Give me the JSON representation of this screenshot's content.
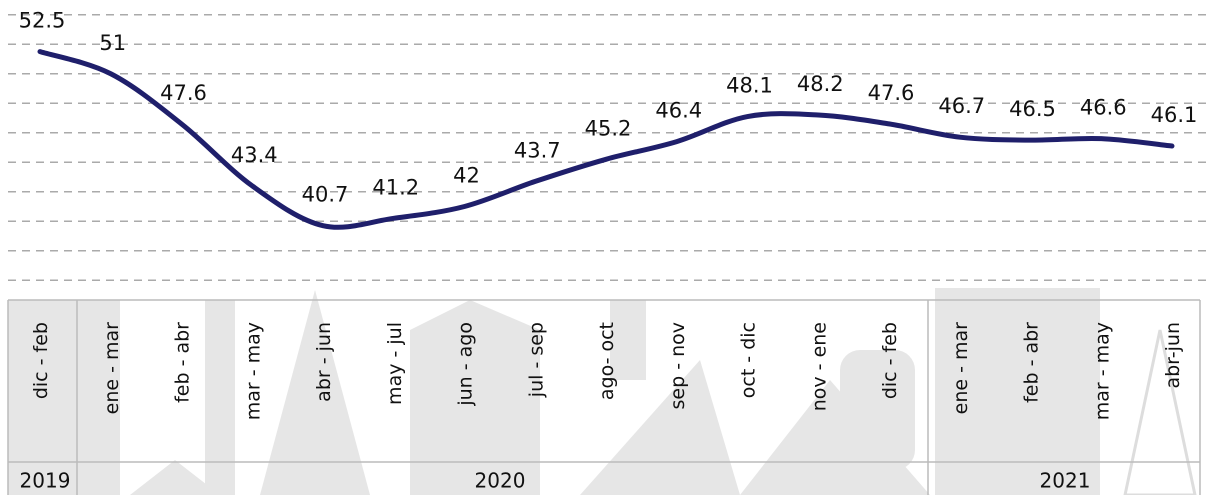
{
  "chart_data": {
    "type": "line",
    "categories": [
      "dic - feb",
      "ene - mar",
      "feb - abr",
      "mar - may",
      "abr - jun",
      "may - jul",
      "jun - ago",
      "jul - sep",
      "ago- oct",
      "sep - nov",
      "oct - dic",
      "nov - ene",
      "dic - feb",
      "ene - mar",
      "feb - abr",
      "mar - may",
      "abr-jun"
    ],
    "groups": [
      "2019",
      "2020",
      "2021"
    ],
    "series": [
      {
        "color": "#1f1f6b",
        "values": [
          52.5,
          51.0,
          47.6,
          43.4,
          40.7,
          41.2,
          42.0,
          43.7,
          45.2,
          46.4,
          48.1,
          48.2,
          47.6,
          46.7,
          46.5,
          46.6,
          46.1
        ]
      }
    ],
    "ylim": [
      36,
      56
    ],
    "yticks": [
      37,
      39,
      41,
      43,
      45,
      47,
      49,
      51,
      53,
      55
    ],
    "grid": true,
    "tick_labels": false
  }
}
